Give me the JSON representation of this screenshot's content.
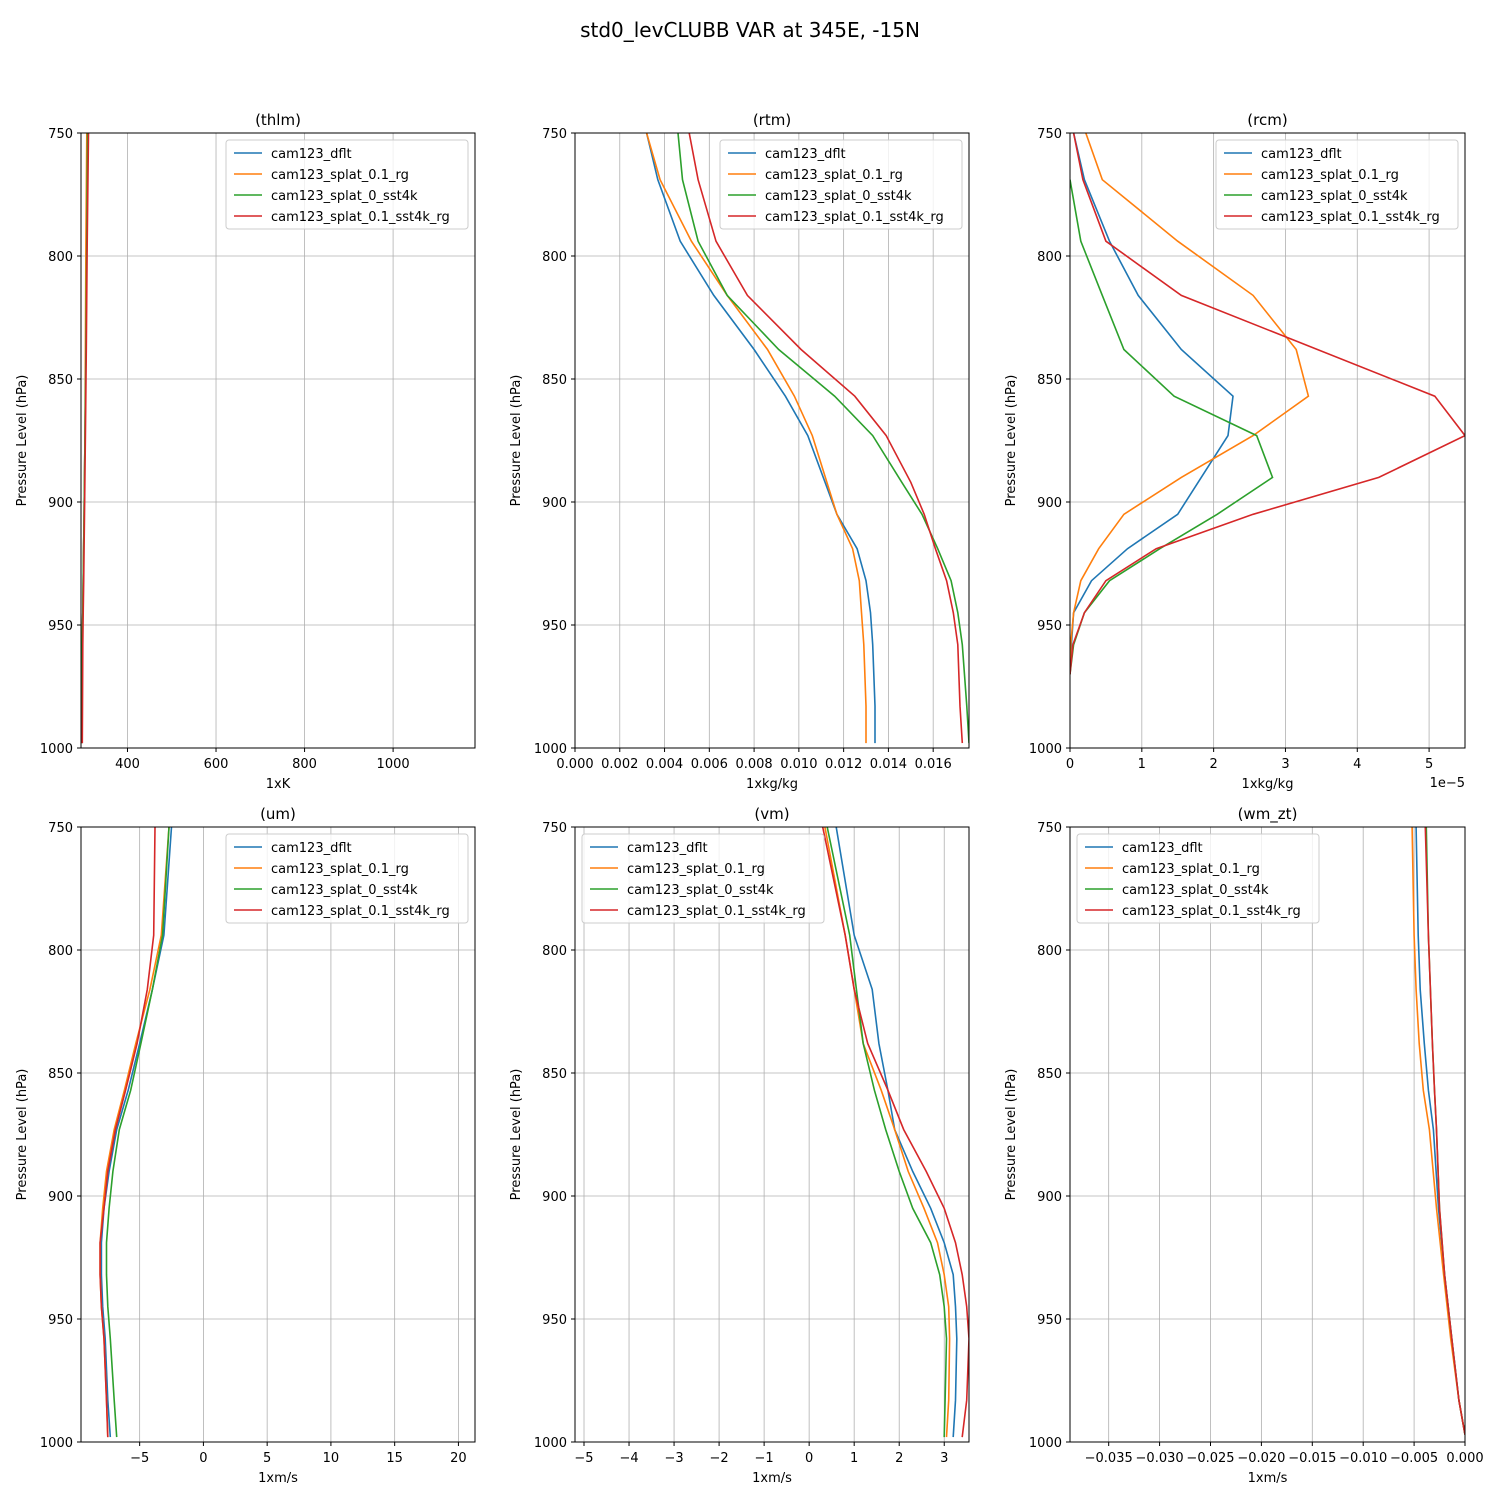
{
  "figure": {
    "title": "std0_levCLUBB VAR at 345E, -15N"
  },
  "legend": {
    "labels": [
      "cam123_dflt",
      "cam123_splat_0.1_rg",
      "cam123_splat_0_sst4k",
      "cam123_splat_0.1_sst4k_rg"
    ],
    "colors": [
      "#1f77b4",
      "#ff7f0e",
      "#2ca02c",
      "#d62728"
    ]
  },
  "chart_data": [
    {
      "type": "line",
      "title": "(thlm)",
      "xlabel": "1xK",
      "ylabel": "Pressure Level (hPa)",
      "xlim": [
        295,
        1185
      ],
      "ylim": [
        1000,
        750
      ],
      "grid": true,
      "legend": "top-right",
      "xticks": [
        400,
        600,
        800,
        1000
      ],
      "xticklabels": [
        "400",
        "600",
        "800",
        "1000"
      ],
      "yticks": [
        750,
        800,
        850,
        900,
        950,
        1000
      ],
      "yticklabels": [
        "750",
        "800",
        "850",
        "900",
        "950",
        "1000"
      ],
      "series": [
        {
          "name": "cam123_dflt",
          "x": [
            297,
            297.5,
            298,
            299,
            300,
            302,
            304,
            306,
            308,
            310
          ],
          "y": [
            998,
            983,
            958,
            945,
            932,
            905,
            873,
            838,
            795,
            750
          ]
        },
        {
          "name": "cam123_splat_0.1_rg",
          "x": [
            297,
            297.5,
            298,
            299,
            300,
            302,
            304,
            305,
            306,
            308
          ],
          "y": [
            998,
            983,
            958,
            945,
            932,
            905,
            873,
            838,
            795,
            750
          ]
        },
        {
          "name": "cam123_splat_0_sst4k",
          "x": [
            297,
            297.5,
            298,
            299,
            300,
            302,
            304,
            306,
            308,
            310
          ],
          "y": [
            998,
            983,
            958,
            945,
            932,
            905,
            873,
            838,
            795,
            750
          ]
        },
        {
          "name": "cam123_splat_0.1_sst4k_rg",
          "x": [
            298,
            298.5,
            299,
            300,
            301,
            303,
            305,
            307,
            309,
            312
          ],
          "y": [
            998,
            983,
            958,
            945,
            932,
            905,
            873,
            838,
            795,
            750
          ]
        }
      ]
    },
    {
      "type": "line",
      "title": "(rtm)",
      "xlabel": "1xkg/kg",
      "ylabel": "Pressure Level (hPa)",
      "xlim": [
        0,
        0.0176
      ],
      "ylim": [
        1000,
        750
      ],
      "grid": true,
      "legend": "top-right",
      "xticks": [
        0,
        0.002,
        0.004,
        0.006,
        0.008,
        0.01,
        0.012,
        0.014,
        0.016
      ],
      "xticklabels": [
        "0.000",
        "0.002",
        "0.004",
        "0.006",
        "0.008",
        "0.010",
        "0.012",
        "0.014",
        "0.016"
      ],
      "yticks": [
        750,
        800,
        850,
        900,
        950,
        1000
      ],
      "yticklabels": [
        "750",
        "800",
        "850",
        "900",
        "950",
        "1000"
      ],
      "series": [
        {
          "name": "cam123_dflt",
          "x": [
            0.0134,
            0.0134,
            0.0133,
            0.0132,
            0.013,
            0.0126,
            0.0117,
            0.0104,
            0.0094,
            0.008,
            0.0062,
            0.0047,
            0.0037,
            0.0032
          ],
          "y": [
            998,
            983,
            958,
            945,
            932,
            919,
            905,
            873,
            857,
            838,
            816,
            794,
            769,
            750
          ]
        },
        {
          "name": "cam123_splat_0.1_rg",
          "x": [
            0.013,
            0.013,
            0.0129,
            0.0128,
            0.0127,
            0.0124,
            0.0117,
            0.0106,
            0.0098,
            0.0086,
            0.0068,
            0.0052,
            0.0038,
            0.0032
          ],
          "y": [
            998,
            983,
            958,
            945,
            932,
            919,
            905,
            873,
            857,
            838,
            816,
            794,
            769,
            750
          ]
        },
        {
          "name": "cam123_splat_0_sst4k",
          "x": [
            0.0176,
            0.0175,
            0.0173,
            0.0171,
            0.0168,
            0.0162,
            0.0155,
            0.0146,
            0.0133,
            0.0116,
            0.0091,
            0.0068,
            0.0055,
            0.0048,
            0.0046
          ],
          "y": [
            998,
            983,
            958,
            945,
            932,
            919,
            905,
            892,
            873,
            857,
            838,
            816,
            794,
            769,
            750
          ]
        },
        {
          "name": "cam123_splat_0.1_sst4k_rg",
          "x": [
            0.0173,
            0.0172,
            0.0171,
            0.0169,
            0.0166,
            0.0161,
            0.0156,
            0.015,
            0.0139,
            0.0125,
            0.0101,
            0.0077,
            0.0063,
            0.0055,
            0.0051
          ],
          "y": [
            998,
            983,
            958,
            945,
            932,
            919,
            905,
            892,
            873,
            857,
            838,
            816,
            794,
            769,
            750
          ]
        }
      ]
    },
    {
      "type": "line",
      "title": "(rcm)",
      "xlabel": "1xkg/kg",
      "ylabel": "Pressure Level (hPa)",
      "offset_text": "1e−5",
      "xlim": [
        0,
        5.5
      ],
      "ylim": [
        1000,
        750
      ],
      "grid": true,
      "legend": "top-right",
      "xticks": [
        0,
        1,
        2,
        3,
        4,
        5
      ],
      "xticklabels": [
        "0",
        "1",
        "2",
        "3",
        "4",
        "5"
      ],
      "yticks": [
        750,
        800,
        850,
        900,
        950,
        1000
      ],
      "yticklabels": [
        "750",
        "800",
        "850",
        "900",
        "950",
        "1000"
      ],
      "series": [
        {
          "name": "cam123_dflt",
          "x": [
            0,
            0.02,
            0.05,
            0.3,
            0.8,
            1.5,
            2.2,
            2.27,
            1.55,
            0.95,
            0.55,
            0.2,
            0.05
          ],
          "y": [
            970,
            958,
            945,
            932,
            919,
            905,
            873,
            857,
            838,
            816,
            794,
            769,
            750
          ]
        },
        {
          "name": "cam123_splat_0.1_rg",
          "x": [
            0,
            0.01,
            0.05,
            0.15,
            0.4,
            0.75,
            1.55,
            2.55,
            3.32,
            3.15,
            2.55,
            1.5,
            0.45,
            0.22
          ],
          "y": [
            970,
            958,
            945,
            932,
            919,
            905,
            890,
            873,
            857,
            838,
            816,
            794,
            769,
            750
          ]
        },
        {
          "name": "cam123_splat_0_sst4k",
          "x": [
            0,
            0.05,
            0.2,
            0.55,
            1.25,
            2.05,
            2.82,
            2.6,
            1.45,
            0.75,
            0.45,
            0.15,
            0
          ],
          "y": [
            970,
            958,
            945,
            932,
            919,
            905,
            890,
            873,
            857,
            838,
            816,
            794,
            769
          ]
        },
        {
          "name": "cam123_splat_0.1_sst4k_rg",
          "x": [
            0,
            0.04,
            0.2,
            0.5,
            1.2,
            2.55,
            4.3,
            5.5,
            5.08,
            1.55,
            0.5,
            0.18,
            0.05
          ],
          "y": [
            970,
            958,
            945,
            932,
            919,
            905,
            890,
            873,
            857,
            816,
            794,
            769,
            750
          ]
        }
      ]
    },
    {
      "type": "line",
      "title": "(um)",
      "xlabel": "1xm/s",
      "ylabel": "Pressure Level (hPa)",
      "xlim": [
        -9.6,
        21.3
      ],
      "ylim": [
        1000,
        750
      ],
      "grid": true,
      "legend": "top-right",
      "xticks": [
        -5,
        0,
        5,
        10,
        15,
        20
      ],
      "xticklabels": [
        "−5",
        "0",
        "5",
        "10",
        "15",
        "20"
      ],
      "yticks": [
        750,
        800,
        850,
        900,
        950,
        1000
      ],
      "yticklabels": [
        "750",
        "800",
        "850",
        "900",
        "950",
        "1000"
      ],
      "series": [
        {
          "name": "cam123_dflt",
          "x": [
            -7.3,
            -7.5,
            -7.7,
            -7.9,
            -8.0,
            -8.0,
            -7.8,
            -7.4,
            -6.8,
            -5.9,
            -5.0,
            -4.0,
            -3.1,
            -2.5
          ],
          "y": [
            998,
            983,
            958,
            945,
            932,
            919,
            905,
            890,
            873,
            857,
            838,
            816,
            794,
            750
          ]
        },
        {
          "name": "cam123_splat_0.1_rg",
          "x": [
            -7.5,
            -7.6,
            -7.8,
            -8.0,
            -8.1,
            -8.1,
            -7.9,
            -7.6,
            -7.0,
            -6.2,
            -5.3,
            -4.2,
            -3.3,
            -2.7
          ],
          "y": [
            998,
            983,
            958,
            945,
            932,
            919,
            905,
            890,
            873,
            857,
            838,
            816,
            794,
            750
          ]
        },
        {
          "name": "cam123_splat_0_sst4k",
          "x": [
            -6.8,
            -7.0,
            -7.3,
            -7.5,
            -7.6,
            -7.6,
            -7.4,
            -7.1,
            -6.6,
            -5.7,
            -4.9,
            -4.0,
            -3.2,
            -2.7
          ],
          "y": [
            998,
            983,
            958,
            945,
            932,
            919,
            905,
            890,
            873,
            857,
            838,
            816,
            794,
            750
          ]
        },
        {
          "name": "cam123_splat_0.1_sst4k_rg",
          "x": [
            -7.5,
            -7.6,
            -7.8,
            -8.0,
            -8.1,
            -8.1,
            -7.8,
            -7.5,
            -6.9,
            -6.1,
            -5.2,
            -4.4,
            -3.9,
            -3.8
          ],
          "y": [
            998,
            983,
            958,
            945,
            932,
            919,
            905,
            890,
            873,
            857,
            838,
            816,
            794,
            750
          ]
        }
      ]
    },
    {
      "type": "line",
      "title": "(vm)",
      "xlabel": "1xm/s",
      "ylabel": "Pressure Level (hPa)",
      "xlim": [
        -5.2,
        3.55
      ],
      "ylim": [
        1000,
        750
      ],
      "grid": true,
      "legend": "top-left",
      "xticks": [
        -5,
        -4,
        -3,
        -2,
        -1,
        0,
        1,
        2,
        3
      ],
      "xticklabels": [
        "−5",
        "−4",
        "−3",
        "−2",
        "−1",
        "0",
        "1",
        "2",
        "3"
      ],
      "yticks": [
        750,
        800,
        850,
        900,
        950,
        1000
      ],
      "yticklabels": [
        "750",
        "800",
        "850",
        "900",
        "950",
        "1000"
      ],
      "series": [
        {
          "name": "cam123_dflt",
          "x": [
            3.2,
            3.25,
            3.28,
            3.25,
            3.2,
            3.0,
            2.7,
            2.3,
            1.9,
            1.75,
            1.55,
            1.4,
            1.0,
            0.6
          ],
          "y": [
            998,
            983,
            958,
            945,
            932,
            919,
            905,
            890,
            873,
            857,
            838,
            816,
            794,
            750
          ]
        },
        {
          "name": "cam123_splat_0.1_rg",
          "x": [
            3.05,
            3.1,
            3.12,
            3.1,
            3.0,
            2.85,
            2.55,
            2.2,
            1.9,
            1.6,
            1.2,
            1.0,
            0.8,
            0.35
          ],
          "y": [
            998,
            983,
            958,
            945,
            932,
            919,
            905,
            890,
            873,
            857,
            838,
            816,
            794,
            750
          ]
        },
        {
          "name": "cam123_splat_0_sst4k",
          "x": [
            3.0,
            3.02,
            3.05,
            3.0,
            2.9,
            2.7,
            2.3,
            2.0,
            1.7,
            1.45,
            1.2,
            1.05,
            0.9,
            0.4
          ],
          "y": [
            998,
            983,
            958,
            945,
            932,
            919,
            905,
            890,
            873,
            857,
            838,
            816,
            794,
            750
          ]
        },
        {
          "name": "cam123_splat_0.1_sst4k_rg",
          "x": [
            3.4,
            3.5,
            3.55,
            3.5,
            3.4,
            3.25,
            3.0,
            2.6,
            2.1,
            1.75,
            1.3,
            1.0,
            0.8,
            0.3
          ],
          "y": [
            998,
            983,
            958,
            945,
            932,
            919,
            905,
            890,
            873,
            857,
            838,
            816,
            794,
            750
          ]
        }
      ]
    },
    {
      "type": "line",
      "title": "(wm_zt)",
      "xlabel": "1xm/s",
      "ylabel": "Pressure Level (hPa)",
      "xlim": [
        -0.0388,
        0
      ],
      "ylim": [
        1000,
        750
      ],
      "grid": true,
      "legend": "top-left",
      "xticks": [
        -0.035,
        -0.03,
        -0.025,
        -0.02,
        -0.015,
        -0.01,
        -0.005,
        0
      ],
      "xticklabels": [
        "−0.035",
        "−0.030",
        "−0.025",
        "−0.020",
        "−0.015",
        "−0.010",
        "−0.005",
        "0.000"
      ],
      "yticks": [
        750,
        800,
        850,
        900,
        950,
        1000
      ],
      "yticklabels": [
        "750",
        "800",
        "850",
        "900",
        "950",
        "1000"
      ],
      "series": [
        {
          "name": "cam123_dflt",
          "x": [
            0,
            -0.0006,
            -0.0013,
            -0.002,
            -0.0026,
            -0.0031,
            -0.0036,
            -0.004,
            -0.0044,
            -0.0046,
            -0.0048
          ],
          "y": [
            997,
            983,
            958,
            932,
            905,
            873,
            857,
            838,
            816,
            794,
            750
          ]
        },
        {
          "name": "cam123_splat_0.1_rg",
          "x": [
            0,
            -0.0006,
            -0.0014,
            -0.0021,
            -0.0028,
            -0.0035,
            -0.0041,
            -0.0045,
            -0.0048,
            -0.005,
            -0.0052
          ],
          "y": [
            997,
            983,
            958,
            932,
            905,
            873,
            857,
            838,
            816,
            794,
            750
          ]
        },
        {
          "name": "cam123_splat_0_sst4k",
          "x": [
            0,
            -0.0006,
            -0.0013,
            -0.002,
            -0.0025,
            -0.0028,
            -0.003,
            -0.0032,
            -0.0034,
            -0.0036,
            -0.0038
          ],
          "y": [
            997,
            983,
            958,
            932,
            905,
            873,
            857,
            838,
            816,
            794,
            750
          ]
        },
        {
          "name": "cam123_splat_0.1_sst4k_rg",
          "x": [
            0,
            -0.0006,
            -0.0013,
            -0.002,
            -0.0025,
            -0.0028,
            -0.003,
            -0.0032,
            -0.0034,
            -0.0036,
            -0.0039
          ],
          "y": [
            997,
            983,
            958,
            932,
            905,
            873,
            857,
            838,
            816,
            794,
            750
          ]
        }
      ]
    }
  ]
}
